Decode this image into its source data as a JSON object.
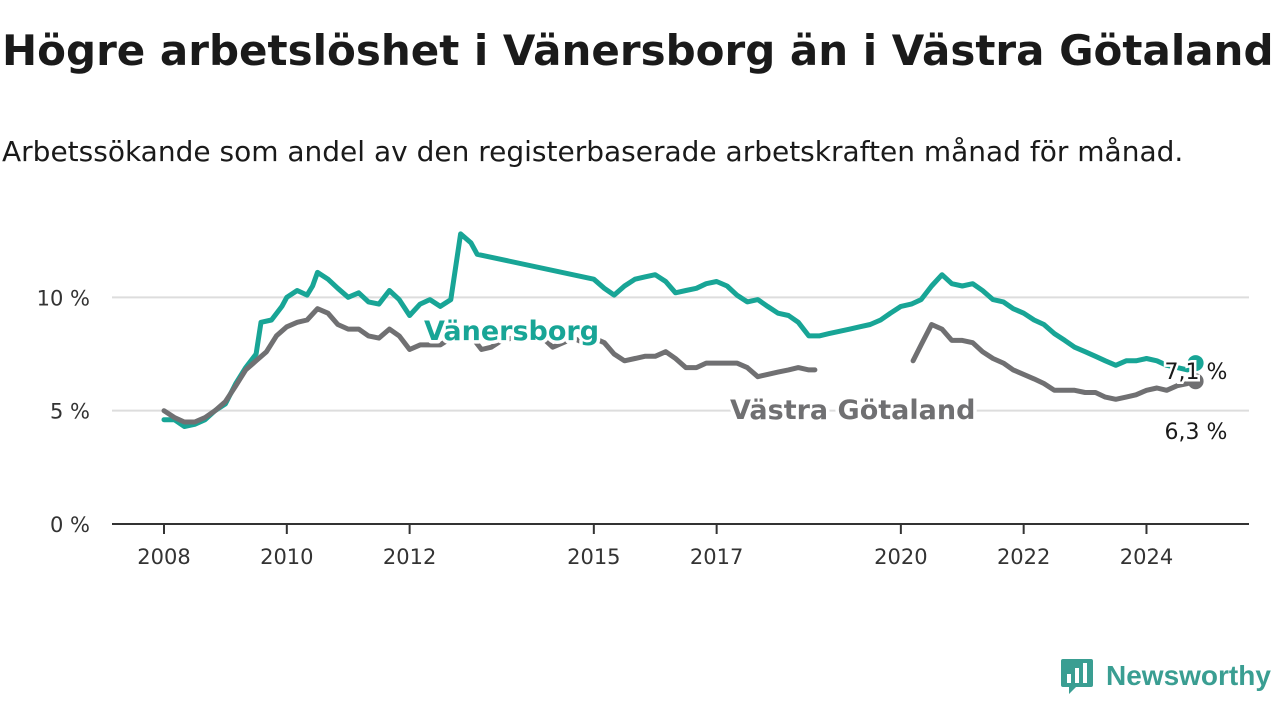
{
  "title": "Högre arbetslöshet i Vänersborg än i Västra Götaland",
  "subtitle": "Arbetssökande som andel av den registerbaserade arbetskraften månad för månad.",
  "brand": "Newsworthy",
  "colors": {
    "vanersborg": "#18a596",
    "vastra": "#707072",
    "grid": "#dddddd",
    "axis": "#333333",
    "brand": "#3a9e92"
  },
  "chart_data": {
    "type": "line",
    "title": "Högre arbetslöshet i Vänersborg än i Västra Götaland",
    "xlabel": "",
    "ylabel": "",
    "xlim": [
      2008.0,
      2025.5
    ],
    "ylim": [
      0,
      12
    ],
    "grid": true,
    "y_ticks": [
      0,
      5,
      10
    ],
    "y_tick_labels": [
      "0 %",
      "5 %",
      "10 %"
    ],
    "x_ticks": [
      2008,
      2010,
      2012,
      2015,
      2017,
      2020,
      2022,
      2024
    ],
    "x_tick_labels": [
      "2008",
      "2010",
      "2012",
      "2015",
      "2017",
      "2020",
      "2022",
      "2024"
    ],
    "series": [
      {
        "name": "Vänersborg",
        "label": "Vänersborg",
        "end_label": "7,1 %",
        "color": "#18a596",
        "points": [
          [
            2008.0,
            4.6
          ],
          [
            2008.17,
            4.6
          ],
          [
            2008.33,
            4.3
          ],
          [
            2008.5,
            4.4
          ],
          [
            2008.67,
            4.6
          ],
          [
            2008.83,
            5.0
          ],
          [
            2009.0,
            5.3
          ],
          [
            2009.17,
            6.2
          ],
          [
            2009.33,
            6.9
          ],
          [
            2009.5,
            7.5
          ],
          [
            2009.58,
            8.9
          ],
          [
            2009.75,
            9.0
          ],
          [
            2009.92,
            9.6
          ],
          [
            2010.0,
            10.0
          ],
          [
            2010.17,
            10.3
          ],
          [
            2010.33,
            10.1
          ],
          [
            2010.42,
            10.5
          ],
          [
            2010.5,
            11.1
          ],
          [
            2010.67,
            10.8
          ],
          [
            2010.83,
            10.4
          ],
          [
            2011.0,
            10.0
          ],
          [
            2011.17,
            10.2
          ],
          [
            2011.33,
            9.8
          ],
          [
            2011.5,
            9.7
          ],
          [
            2011.67,
            10.3
          ],
          [
            2011.83,
            9.9
          ],
          [
            2012.0,
            9.2
          ],
          [
            2012.17,
            9.7
          ],
          [
            2012.33,
            9.9
          ],
          [
            2012.5,
            9.6
          ],
          [
            2012.67,
            9.9
          ],
          [
            2012.83,
            12.8
          ],
          [
            2013.0,
            12.4
          ],
          [
            2013.1,
            11.9
          ],
          [
            2015.0,
            10.8
          ],
          [
            2015.17,
            10.4
          ],
          [
            2015.33,
            10.1
          ],
          [
            2015.5,
            10.5
          ],
          [
            2015.67,
            10.8
          ],
          [
            2015.83,
            10.9
          ],
          [
            2016.0,
            11.0
          ],
          [
            2016.17,
            10.7
          ],
          [
            2016.33,
            10.2
          ],
          [
            2016.5,
            10.3
          ],
          [
            2016.67,
            10.4
          ],
          [
            2016.83,
            10.6
          ],
          [
            2017.0,
            10.7
          ],
          [
            2017.17,
            10.5
          ],
          [
            2017.33,
            10.1
          ],
          [
            2017.5,
            9.8
          ],
          [
            2017.67,
            9.9
          ],
          [
            2017.83,
            9.6
          ],
          [
            2018.0,
            9.3
          ],
          [
            2018.17,
            9.2
          ],
          [
            2018.33,
            8.9
          ],
          [
            2018.5,
            8.3
          ],
          [
            2018.67,
            8.3
          ],
          [
            2018.83,
            8.4
          ],
          [
            2019.0,
            8.5
          ],
          [
            2019.17,
            8.6
          ],
          [
            2019.33,
            8.7
          ],
          [
            2019.5,
            8.8
          ],
          [
            2019.67,
            9.0
          ],
          [
            2019.83,
            9.3
          ],
          [
            2020.0,
            9.6
          ],
          [
            2020.17,
            9.7
          ],
          [
            2020.33,
            9.9
          ],
          [
            2020.5,
            10.5
          ],
          [
            2020.67,
            11.0
          ],
          [
            2020.83,
            10.6
          ],
          [
            2021.0,
            10.5
          ],
          [
            2021.17,
            10.6
          ],
          [
            2021.33,
            10.3
          ],
          [
            2021.5,
            9.9
          ],
          [
            2021.67,
            9.8
          ],
          [
            2021.83,
            9.5
          ],
          [
            2022.0,
            9.3
          ],
          [
            2022.17,
            9.0
          ],
          [
            2022.33,
            8.8
          ],
          [
            2022.5,
            8.4
          ],
          [
            2022.67,
            8.1
          ],
          [
            2022.83,
            7.8
          ],
          [
            2023.0,
            7.6
          ],
          [
            2023.17,
            7.4
          ],
          [
            2023.33,
            7.2
          ],
          [
            2023.5,
            7.0
          ],
          [
            2023.67,
            7.2
          ],
          [
            2023.83,
            7.2
          ],
          [
            2024.0,
            7.3
          ],
          [
            2024.17,
            7.2
          ],
          [
            2024.33,
            7.0
          ],
          [
            2024.5,
            6.9
          ],
          [
            2024.67,
            6.8
          ],
          [
            2024.8,
            7.1
          ]
        ]
      },
      {
        "name": "Västra Götaland",
        "label": "Västra Götaland",
        "end_label": "6,3 %",
        "color": "#707072",
        "points": [
          [
            2008.0,
            5.0
          ],
          [
            2008.17,
            4.7
          ],
          [
            2008.33,
            4.5
          ],
          [
            2008.5,
            4.5
          ],
          [
            2008.67,
            4.7
          ],
          [
            2008.83,
            5.0
          ],
          [
            2009.0,
            5.4
          ],
          [
            2009.17,
            6.1
          ],
          [
            2009.33,
            6.8
          ],
          [
            2009.5,
            7.2
          ],
          [
            2009.67,
            7.6
          ],
          [
            2009.83,
            8.3
          ],
          [
            2010.0,
            8.7
          ],
          [
            2010.17,
            8.9
          ],
          [
            2010.33,
            9.0
          ],
          [
            2010.5,
            9.5
          ],
          [
            2010.67,
            9.3
          ],
          [
            2010.83,
            8.8
          ],
          [
            2011.0,
            8.6
          ],
          [
            2011.17,
            8.6
          ],
          [
            2011.33,
            8.3
          ],
          [
            2011.5,
            8.2
          ],
          [
            2011.67,
            8.6
          ],
          [
            2011.83,
            8.3
          ],
          [
            2012.0,
            7.7
          ],
          [
            2012.17,
            7.9
          ],
          [
            2012.33,
            7.9
          ],
          [
            2012.5,
            7.9
          ],
          [
            2012.67,
            8.2
          ],
          [
            2012.83,
            8.5
          ],
          [
            2013.0,
            8.3
          ],
          [
            2013.17,
            7.7
          ],
          [
            2013.33,
            7.8
          ],
          [
            2013.5,
            8.1
          ],
          [
            2013.67,
            8.2
          ],
          [
            2013.83,
            8.5
          ],
          [
            2014.0,
            8.4
          ],
          [
            2014.17,
            8.2
          ],
          [
            2014.33,
            7.8
          ],
          [
            2014.5,
            8.0
          ],
          [
            2014.67,
            8.2
          ],
          [
            2014.83,
            8.0
          ],
          [
            2015.0,
            8.2
          ],
          [
            2015.17,
            8.0
          ],
          [
            2015.33,
            7.5
          ],
          [
            2015.5,
            7.2
          ],
          [
            2015.67,
            7.3
          ],
          [
            2015.83,
            7.4
          ],
          [
            2016.0,
            7.4
          ],
          [
            2016.17,
            7.6
          ],
          [
            2016.33,
            7.3
          ],
          [
            2016.5,
            6.9
          ],
          [
            2016.67,
            6.9
          ],
          [
            2016.83,
            7.1
          ],
          [
            2017.0,
            7.1
          ],
          [
            2017.17,
            7.1
          ],
          [
            2017.33,
            7.1
          ],
          [
            2017.5,
            6.9
          ],
          [
            2017.67,
            6.5
          ],
          [
            2017.83,
            6.6
          ],
          [
            2018.0,
            6.7
          ],
          [
            2018.17,
            6.8
          ],
          [
            2018.33,
            6.9
          ],
          [
            2018.5,
            6.8
          ],
          [
            2018.6,
            6.8
          ]
        ]
      },
      {
        "name": "Västra Götaland (2020–2024)",
        "color": "#707072",
        "points": [
          [
            2020.2,
            7.2
          ],
          [
            2020.33,
            7.9
          ],
          [
            2020.5,
            8.8
          ],
          [
            2020.67,
            8.6
          ],
          [
            2020.83,
            8.1
          ],
          [
            2021.0,
            8.1
          ],
          [
            2021.17,
            8.0
          ],
          [
            2021.33,
            7.6
          ],
          [
            2021.5,
            7.3
          ],
          [
            2021.67,
            7.1
          ],
          [
            2021.83,
            6.8
          ],
          [
            2022.0,
            6.6
          ],
          [
            2022.17,
            6.4
          ],
          [
            2022.33,
            6.2
          ],
          [
            2022.5,
            5.9
          ],
          [
            2022.67,
            5.9
          ],
          [
            2022.83,
            5.9
          ],
          [
            2023.0,
            5.8
          ],
          [
            2023.17,
            5.8
          ],
          [
            2023.33,
            5.6
          ],
          [
            2023.5,
            5.5
          ],
          [
            2023.67,
            5.6
          ],
          [
            2023.83,
            5.7
          ],
          [
            2024.0,
            5.9
          ],
          [
            2024.17,
            6.0
          ],
          [
            2024.33,
            5.9
          ],
          [
            2024.5,
            6.1
          ],
          [
            2024.67,
            6.2
          ],
          [
            2024.8,
            6.3
          ]
        ]
      }
    ]
  }
}
